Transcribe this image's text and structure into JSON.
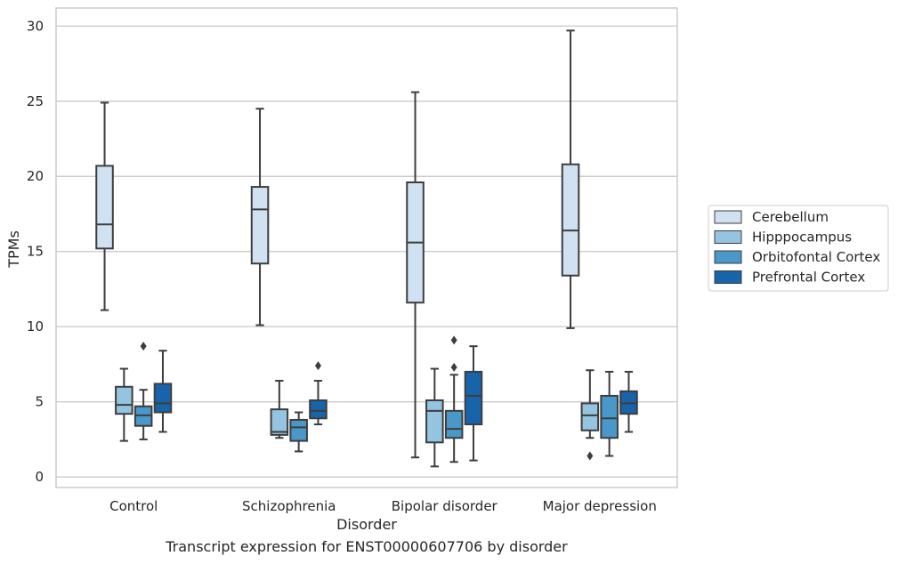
{
  "caption": "Transcript expression for ENST00000607706 by disorder",
  "chart_data": {
    "type": "boxplot",
    "xlabel": "Disorder",
    "ylabel": "TPMs",
    "ylim": [
      -0.7,
      31.2
    ],
    "yticks": [
      0,
      5,
      10,
      15,
      20,
      25,
      30
    ],
    "grid": "horizontal",
    "legend_position": "right",
    "categories": [
      "Control",
      "Schizophrenia",
      "Bipolar disorder",
      "Major depression"
    ],
    "series": [
      {
        "name": "Cerebellum",
        "color": "#d0e1f2",
        "boxes": [
          {
            "whislo": 11.1,
            "q1": 15.2,
            "med": 16.8,
            "q3": 20.7,
            "whishi": 24.9,
            "fliers": []
          },
          {
            "whislo": 10.1,
            "q1": 14.2,
            "med": 17.8,
            "q3": 19.3,
            "whishi": 24.5,
            "fliers": []
          },
          {
            "whislo": 1.3,
            "q1": 11.6,
            "med": 15.6,
            "q3": 19.6,
            "whishi": 25.6,
            "fliers": []
          },
          {
            "whislo": 9.9,
            "q1": 13.4,
            "med": 16.4,
            "q3": 20.8,
            "whishi": 29.7,
            "fliers": []
          }
        ]
      },
      {
        "name": "Hipppocampus",
        "color": "#94c4df",
        "boxes": [
          {
            "whislo": 2.4,
            "q1": 4.2,
            "med": 4.8,
            "q3": 6.0,
            "whishi": 7.2,
            "fliers": []
          },
          {
            "whislo": 2.6,
            "q1": 2.8,
            "med": 3.0,
            "q3": 4.5,
            "whishi": 6.4,
            "fliers": []
          },
          {
            "whislo": 0.7,
            "q1": 2.3,
            "med": 4.4,
            "q3": 5.1,
            "whishi": 7.2,
            "fliers": []
          },
          {
            "whislo": 2.6,
            "q1": 3.1,
            "med": 4.1,
            "q3": 4.9,
            "whishi": 7.1,
            "fliers": [
              1.4
            ]
          }
        ]
      },
      {
        "name": "Orbitofontal Cortex",
        "color": "#4a98c9",
        "boxes": [
          {
            "whislo": 2.5,
            "q1": 3.4,
            "med": 4.1,
            "q3": 4.7,
            "whishi": 5.8,
            "fliers": [
              8.7
            ]
          },
          {
            "whislo": 1.7,
            "q1": 2.4,
            "med": 3.3,
            "q3": 3.8,
            "whishi": 4.3,
            "fliers": []
          },
          {
            "whislo": 1.0,
            "q1": 2.6,
            "med": 3.2,
            "q3": 4.4,
            "whishi": 6.8,
            "fliers": [
              7.3,
              9.1
            ]
          },
          {
            "whislo": 1.4,
            "q1": 2.6,
            "med": 3.9,
            "q3": 5.4,
            "whishi": 7.0,
            "fliers": []
          }
        ]
      },
      {
        "name": "Prefrontal Cortex",
        "color": "#1764ab",
        "boxes": [
          {
            "whislo": 3.0,
            "q1": 4.3,
            "med": 4.9,
            "q3": 6.2,
            "whishi": 8.4,
            "fliers": []
          },
          {
            "whislo": 3.5,
            "q1": 3.9,
            "med": 4.4,
            "q3": 5.1,
            "whishi": 6.4,
            "fliers": [
              7.4
            ]
          },
          {
            "whislo": 1.1,
            "q1": 3.5,
            "med": 5.4,
            "q3": 7.0,
            "whishi": 8.7,
            "fliers": []
          },
          {
            "whislo": 3.0,
            "q1": 4.2,
            "med": 4.9,
            "q3": 5.7,
            "whishi": 7.0,
            "fliers": []
          }
        ]
      }
    ]
  }
}
